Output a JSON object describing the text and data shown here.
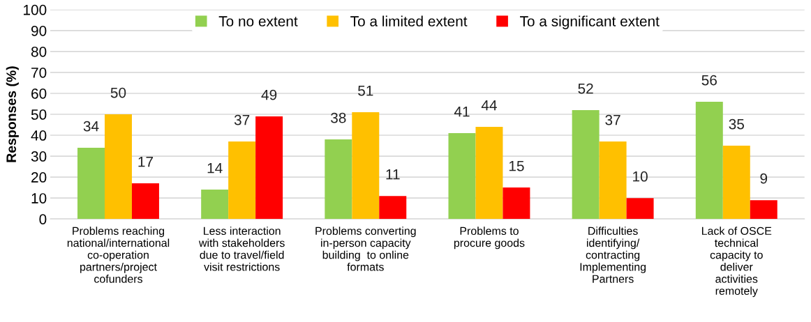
{
  "chart_data": {
    "type": "bar",
    "ylabel": "Responses (%)",
    "categories": [
      "Problems reaching\nnational/international\nco-operation\npartners/project\ncofunders",
      "Less interaction\nwith stakeholders\ndue to travel/field\nvisit restrictions",
      "Problems converting\nin-person capacity\nbuilding  to online\nformats",
      "Problems to\nprocure goods",
      "Difficulties\nidentifying/\ncontracting\nImplementing\nPartners",
      "Lack of OSCE\ntechnical\ncapacity to\ndeliver\nactivities\nremotely"
    ],
    "series": [
      {
        "name": "To no extent",
        "color": "#92d050",
        "values": [
          34,
          14,
          38,
          41,
          52,
          56
        ]
      },
      {
        "name": "To a limited extent",
        "color": "#ffc000",
        "values": [
          50,
          37,
          51,
          44,
          37,
          35
        ]
      },
      {
        "name": "To a significant extent",
        "color": "#ff0000",
        "values": [
          17,
          49,
          11,
          15,
          10,
          9
        ]
      }
    ],
    "ylim": [
      0,
      100
    ],
    "yticks": [
      0,
      10,
      20,
      30,
      40,
      50,
      60,
      70,
      80,
      90,
      100
    ],
    "grid": "y",
    "legend": "top",
    "data_labels": true
  }
}
